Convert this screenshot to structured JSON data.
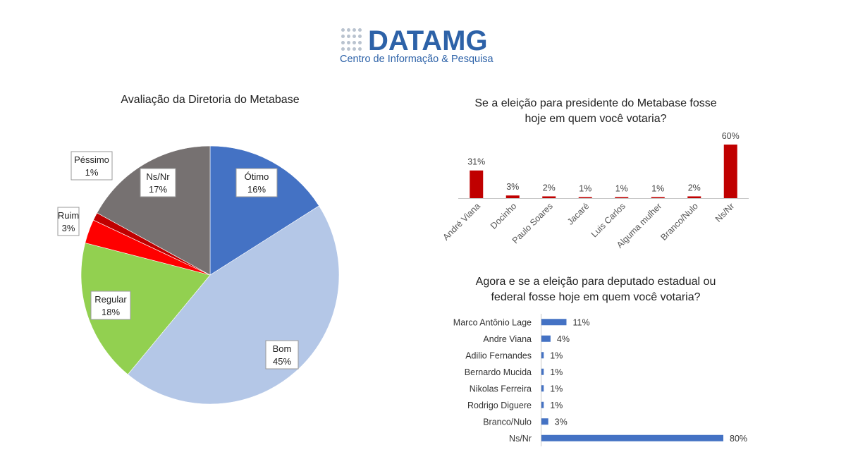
{
  "logo": {
    "word_a": "DATA",
    "word_b": "MG",
    "subtitle": "Centro de Informação & Pesquisa"
  },
  "colors": {
    "bar_red": "#c00000",
    "bar_blue": "#4472c4"
  },
  "chart_data": [
    {
      "type": "pie",
      "title": "Avaliação da Diretoria do Metabase",
      "categories": [
        "Ótimo",
        "Bom",
        "Regular",
        "Ruim",
        "Péssimo",
        "Ns/Nr"
      ],
      "values": [
        16,
        45,
        18,
        3,
        1,
        17
      ],
      "labels": [
        "16%",
        "45%",
        "18%",
        "3%",
        "1%",
        "17%"
      ],
      "colors": [
        "#4472c4",
        "#b4c7e7",
        "#92d050",
        "#ff0000",
        "#c00000",
        "#767171"
      ]
    },
    {
      "type": "bar",
      "title_lines": [
        "Se a eleição para presidente do Metabase fosse",
        "hoje em quem você votaria?"
      ],
      "categories": [
        "André Viana",
        "Docinho",
        "Paulo Soares",
        "Jacaré",
        "Luis Carlos",
        "Alguma mulher",
        "Branco/Nulo",
        "Ns/Nr"
      ],
      "values": [
        31,
        3,
        2,
        1,
        1,
        1,
        2,
        60
      ],
      "labels": [
        "31%",
        "3%",
        "2%",
        "1%",
        "1%",
        "1%",
        "2%",
        "60%"
      ]
    },
    {
      "type": "bar",
      "orientation": "horizontal",
      "title_lines": [
        "Agora e se a eleição para deputado estadual ou",
        "federal fosse hoje em quem você votaria?"
      ],
      "categories": [
        "Marco Antônio Lage",
        "Andre Viana",
        "Adilio Fernandes",
        "Bernardo Mucida",
        "Nikolas Ferreira",
        "Rodrigo Diguere",
        "Branco/Nulo",
        "Ns/Nr"
      ],
      "values": [
        11,
        4,
        1,
        1,
        1,
        1,
        3,
        80
      ],
      "labels": [
        "11%",
        "4%",
        "1%",
        "1%",
        "1%",
        "1%",
        "3%",
        "80%"
      ]
    }
  ]
}
